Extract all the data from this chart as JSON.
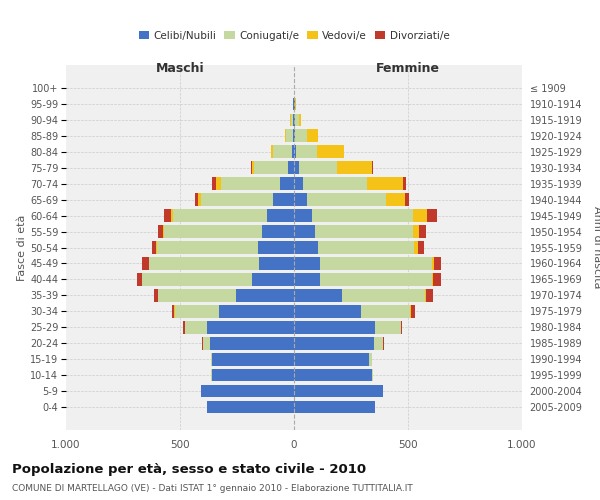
{
  "age_groups": [
    "0-4",
    "5-9",
    "10-14",
    "15-19",
    "20-24",
    "25-29",
    "30-34",
    "35-39",
    "40-44",
    "45-49",
    "50-54",
    "55-59",
    "60-64",
    "65-69",
    "70-74",
    "75-79",
    "80-84",
    "85-89",
    "90-94",
    "95-99",
    "100+"
  ],
  "birth_years": [
    "2005-2009",
    "2000-2004",
    "1995-1999",
    "1990-1994",
    "1985-1989",
    "1980-1984",
    "1975-1979",
    "1970-1974",
    "1965-1969",
    "1960-1964",
    "1955-1959",
    "1950-1954",
    "1945-1949",
    "1940-1944",
    "1935-1939",
    "1930-1934",
    "1925-1929",
    "1920-1924",
    "1915-1919",
    "1910-1914",
    "≤ 1909"
  ],
  "colors": {
    "celibe": "#4472c4",
    "coniugato": "#c5d8a0",
    "vedovo": "#f5c218",
    "divorziato": "#c0392b"
  },
  "maschi": {
    "celibe": [
      380,
      410,
      360,
      360,
      370,
      380,
      330,
      255,
      185,
      155,
      160,
      140,
      120,
      90,
      60,
      25,
      10,
      5,
      5,
      3,
      2
    ],
    "coniugato": [
      0,
      0,
      5,
      5,
      30,
      100,
      190,
      340,
      480,
      480,
      440,
      430,
      410,
      320,
      260,
      150,
      80,
      30,
      10,
      3,
      0
    ],
    "vedovo": [
      0,
      0,
      0,
      0,
      0,
      0,
      5,
      0,
      0,
      0,
      5,
      5,
      10,
      10,
      20,
      10,
      10,
      5,
      2,
      0,
      0
    ],
    "divorziato": [
      0,
      0,
      0,
      0,
      5,
      5,
      10,
      20,
      25,
      30,
      20,
      20,
      30,
      15,
      20,
      5,
      0,
      0,
      0,
      0,
      0
    ]
  },
  "femmine": {
    "nubile": [
      355,
      390,
      340,
      330,
      350,
      355,
      295,
      210,
      115,
      115,
      105,
      90,
      80,
      55,
      40,
      20,
      10,
      5,
      5,
      3,
      2
    ],
    "coniugata": [
      0,
      0,
      5,
      10,
      40,
      115,
      215,
      365,
      490,
      490,
      420,
      430,
      440,
      350,
      280,
      170,
      90,
      50,
      15,
      3,
      0
    ],
    "vedova": [
      0,
      0,
      0,
      0,
      0,
      0,
      5,
      5,
      5,
      10,
      20,
      30,
      65,
      80,
      160,
      150,
      120,
      50,
      10,
      2,
      0
    ],
    "divorziata": [
      0,
      0,
      0,
      0,
      5,
      5,
      15,
      30,
      35,
      30,
      25,
      30,
      40,
      20,
      10,
      5,
      0,
      0,
      0,
      0,
      0
    ]
  },
  "title": "Popolazione per età, sesso e stato civile - 2010",
  "subtitle": "COMUNE DI MARTELLAGO (VE) - Dati ISTAT 1° gennaio 2010 - Elaborazione TUTTITALIA.IT",
  "xlabel_left": "Maschi",
  "xlabel_right": "Femmine",
  "ylabel_left": "Fasce di età",
  "ylabel_right": "Anni di nascita",
  "xlim": 1000,
  "bg_color": "#f0f0f0",
  "grid_color": "#cccccc"
}
